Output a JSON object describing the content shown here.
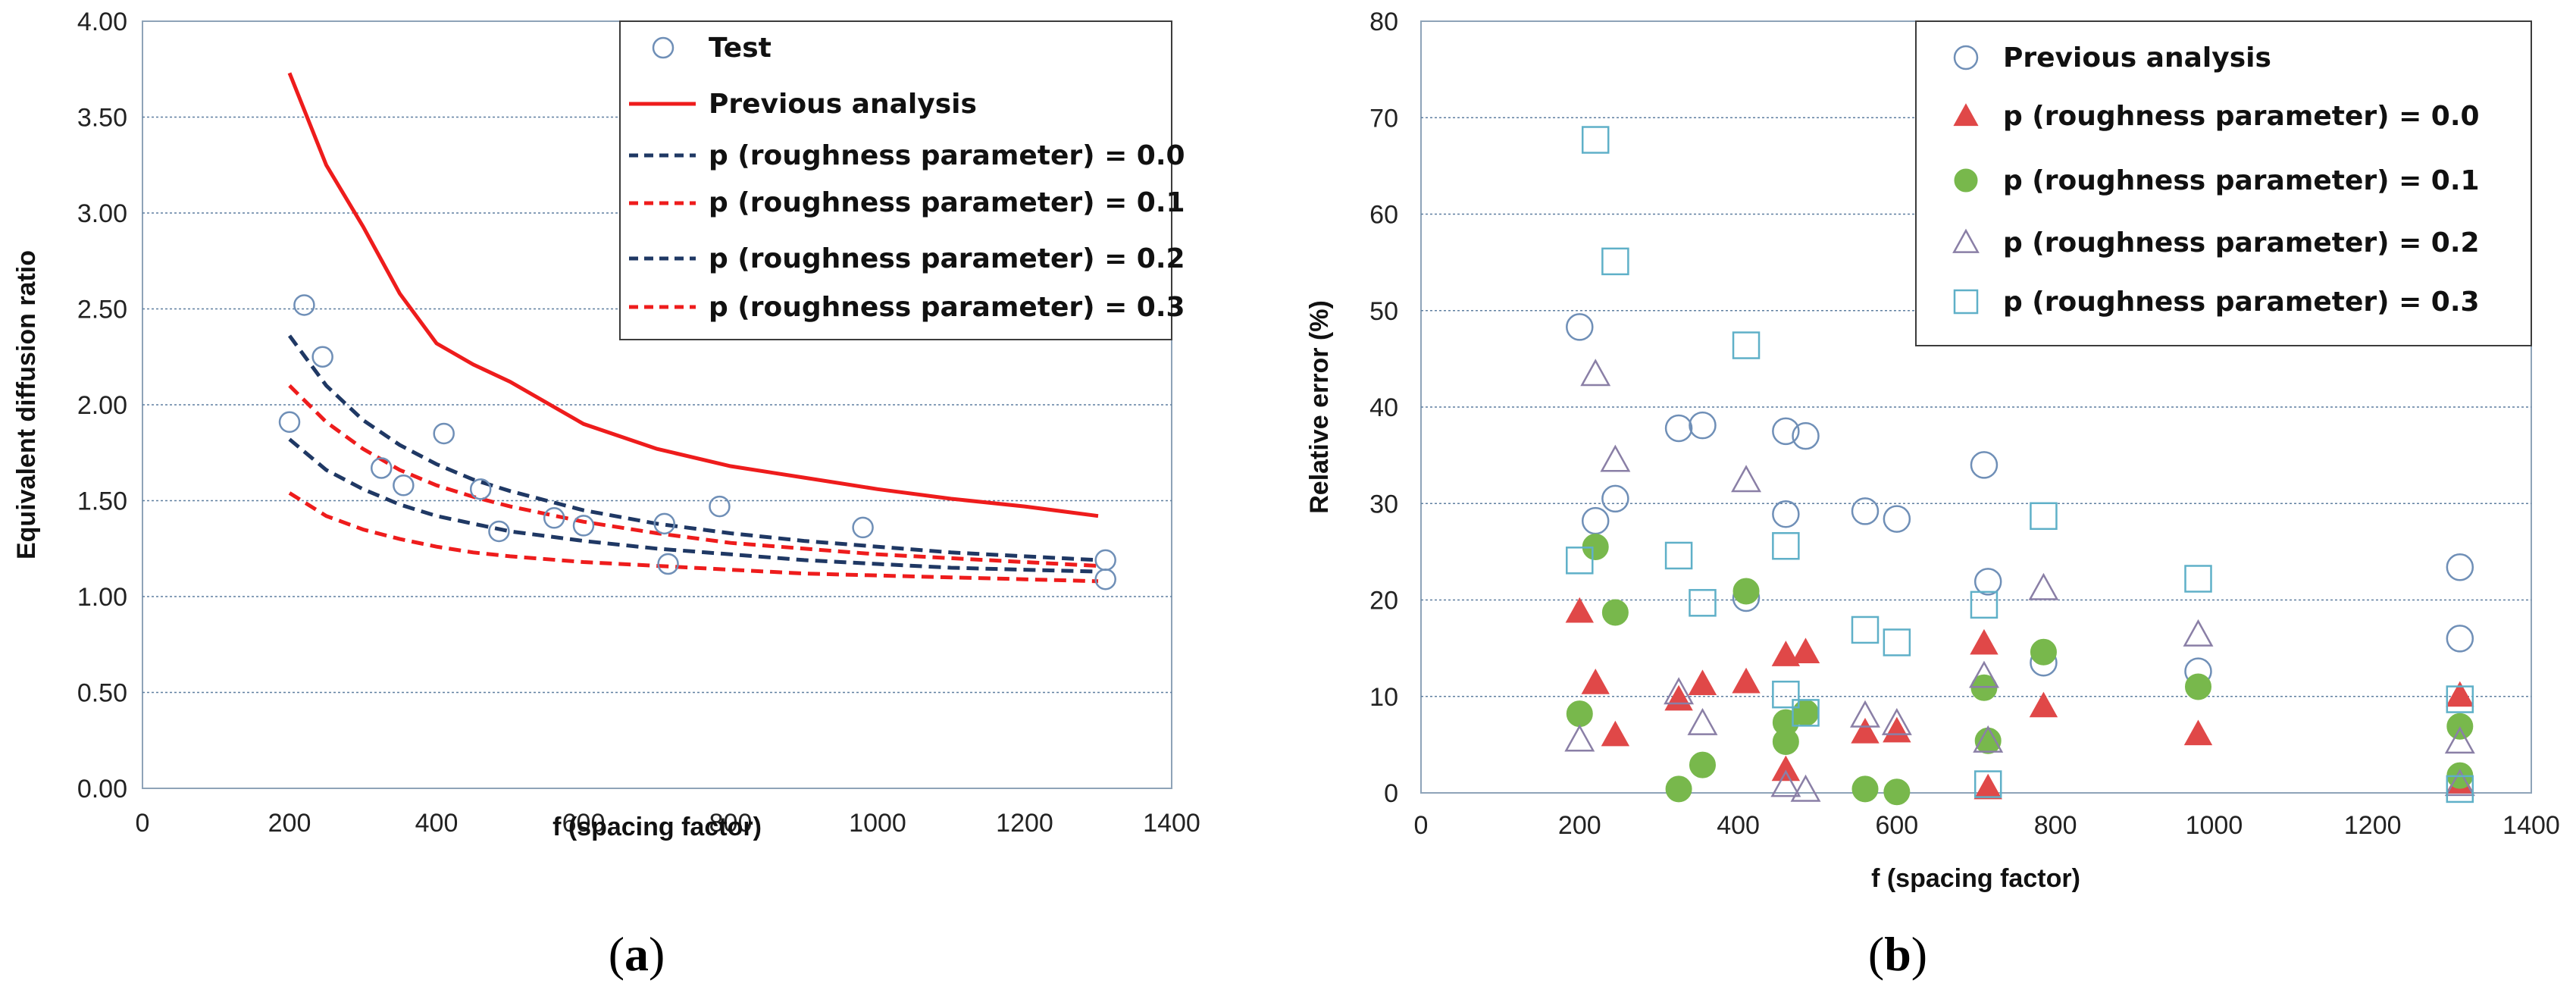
{
  "chart_data": [
    {
      "panel": "a",
      "panel_label": {
        "open": "(",
        "letter": "a",
        "close": ")"
      },
      "type": "line",
      "xlabel": "f (spacing factor)",
      "ylabel": "Equivalent diffusion ratio",
      "xlim": [
        0,
        1400
      ],
      "ylim": [
        0,
        4
      ],
      "xticks": [
        0,
        200,
        400,
        600,
        800,
        1000,
        1200,
        1400
      ],
      "xtick_labels": [
        "0",
        "200",
        "400",
        "600",
        "800",
        "1000",
        "1200",
        "1400"
      ],
      "yticks": [
        0,
        0.5,
        1,
        1.5,
        2,
        2.5,
        3,
        3.5,
        4
      ],
      "ytick_labels": [
        "0.00",
        "0.50",
        "1.00",
        "1.50",
        "2.00",
        "2.50",
        "3.00",
        "3.50",
        "4.00"
      ],
      "grid": "horizontal",
      "legend_position": "top-right",
      "series": [
        {
          "name": "Test",
          "kind": "scatter",
          "marker": "open-circle",
          "color": "#6f8fb7",
          "x": [
            200,
            220,
            245,
            325,
            355,
            410,
            460,
            485,
            560,
            600,
            710,
            715,
            785,
            980,
            1310,
            1310
          ],
          "y": [
            1.91,
            2.52,
            2.25,
            1.67,
            1.58,
            1.85,
            1.56,
            1.34,
            1.41,
            1.37,
            1.38,
            1.17,
            1.47,
            1.36,
            1.19,
            1.09
          ]
        },
        {
          "name": "Previous analysis",
          "kind": "line",
          "dash": "solid",
          "color": "#ee1c1c",
          "x": [
            200,
            250,
            300,
            350,
            400,
            450,
            500,
            600,
            700,
            800,
            900,
            1000,
            1100,
            1200,
            1300
          ],
          "y": [
            3.73,
            3.25,
            2.93,
            2.58,
            2.32,
            2.21,
            2.12,
            1.9,
            1.77,
            1.68,
            1.62,
            1.56,
            1.51,
            1.47,
            1.42
          ]
        },
        {
          "name": "p (roughness parameter) = 0.0",
          "kind": "line",
          "dash": "dashed",
          "color": "#1f3864",
          "x": [
            200,
            250,
            300,
            350,
            400,
            450,
            500,
            600,
            700,
            800,
            900,
            1000,
            1100,
            1200,
            1300
          ],
          "y": [
            2.36,
            2.1,
            1.92,
            1.79,
            1.69,
            1.61,
            1.55,
            1.45,
            1.38,
            1.33,
            1.29,
            1.26,
            1.23,
            1.21,
            1.19
          ]
        },
        {
          "name": "p (roughness parameter) = 0.1",
          "kind": "line",
          "dash": "dashed",
          "color": "#ee1c1c",
          "x": [
            200,
            250,
            300,
            350,
            400,
            450,
            500,
            600,
            700,
            800,
            900,
            1000,
            1100,
            1200,
            1300
          ],
          "y": [
            2.1,
            1.91,
            1.77,
            1.66,
            1.58,
            1.52,
            1.47,
            1.39,
            1.33,
            1.28,
            1.25,
            1.22,
            1.2,
            1.18,
            1.16
          ]
        },
        {
          "name": "p (roughness parameter) = 0.2",
          "kind": "line",
          "dash": "dashed",
          "color": "#1f3864",
          "x": [
            200,
            250,
            300,
            350,
            400,
            450,
            500,
            600,
            700,
            800,
            900,
            1000,
            1100,
            1200,
            1300
          ],
          "y": [
            1.82,
            1.66,
            1.56,
            1.48,
            1.42,
            1.38,
            1.34,
            1.29,
            1.25,
            1.22,
            1.19,
            1.17,
            1.15,
            1.14,
            1.13
          ]
        },
        {
          "name": "p (roughness parameter) = 0.3",
          "kind": "line",
          "dash": "dashed",
          "color": "#ee1c1c",
          "x": [
            200,
            250,
            300,
            350,
            400,
            450,
            500,
            600,
            700,
            800,
            900,
            1000,
            1100,
            1200,
            1300
          ],
          "y": [
            1.54,
            1.42,
            1.35,
            1.3,
            1.26,
            1.23,
            1.21,
            1.18,
            1.16,
            1.14,
            1.12,
            1.11,
            1.1,
            1.09,
            1.08
          ]
        }
      ]
    },
    {
      "panel": "b",
      "panel_label": {
        "open": "(",
        "letter": "b",
        "close": ")"
      },
      "type": "scatter",
      "xlabel": "f (spacing factor)",
      "ylabel": "Relative error (%)",
      "xlim": [
        0,
        1400
      ],
      "ylim": [
        0,
        80
      ],
      "xticks": [
        0,
        200,
        400,
        600,
        800,
        1000,
        1200,
        1400
      ],
      "xtick_labels": [
        "0",
        "200",
        "400",
        "600",
        "800",
        "1000",
        "1200",
        "1400"
      ],
      "yticks": [
        0,
        10,
        20,
        30,
        40,
        50,
        60,
        70,
        80
      ],
      "ytick_labels": [
        "0",
        "10",
        "20",
        "30",
        "40",
        "50",
        "60",
        "70",
        "80"
      ],
      "grid": "horizontal",
      "legend_position": "top-right",
      "series": [
        {
          "name": "Previous analysis",
          "marker": "open-circle",
          "color": "#6f8fb7",
          "x": [
            200,
            220,
            245,
            325,
            355,
            410,
            460,
            460,
            485,
            560,
            600,
            710,
            715,
            785,
            980,
            1310,
            1310
          ],
          "y": [
            48.3,
            28.2,
            30.5,
            37.8,
            38.1,
            20.2,
            37.5,
            28.9,
            37.0,
            29.2,
            28.4,
            34.0,
            21.9,
            13.5,
            12.6,
            23.4,
            16.0
          ]
        },
        {
          "name": "p (roughness parameter) = 0.0",
          "marker": "filled-triangle",
          "color": "#e04848",
          "x": [
            200,
            220,
            245,
            325,
            355,
            410,
            460,
            460,
            485,
            560,
            600,
            710,
            715,
            785,
            980,
            1310,
            1310
          ],
          "y": [
            18.8,
            11.4,
            6.0,
            9.7,
            11.3,
            11.5,
            14.3,
            2.4,
            14.6,
            6.3,
            6.4,
            15.5,
            0.5,
            9.0,
            6.1,
            10.1,
            1.1
          ]
        },
        {
          "name": "p (roughness parameter) = 0.1",
          "marker": "filled-circle",
          "color": "#78b84c",
          "x": [
            200,
            220,
            245,
            325,
            355,
            410,
            460,
            460,
            485,
            560,
            600,
            710,
            715,
            785,
            980,
            1310,
            1310
          ],
          "y": [
            8.2,
            25.5,
            18.7,
            0.4,
            2.9,
            20.9,
            7.3,
            5.3,
            8.3,
            0.4,
            0.1,
            10.9,
            5.4,
            14.6,
            11.0,
            6.9,
            1.8
          ]
        },
        {
          "name": "p (roughness parameter) = 0.2",
          "marker": "open-triangle",
          "color": "#8a7fa6",
          "x": [
            200,
            220,
            245,
            325,
            355,
            410,
            460,
            485,
            560,
            600,
            710,
            715,
            785,
            980,
            1310,
            1310
          ],
          "y": [
            5.5,
            43.4,
            34.5,
            10.4,
            7.2,
            32.4,
            0.8,
            0.3,
            8.0,
            7.2,
            12.1,
            5.4,
            21.2,
            16.4,
            5.3,
            0.9
          ]
        },
        {
          "name": "p (roughness parameter) = 0.3",
          "marker": "open-square",
          "color": "#5fb0c8",
          "x": [
            200,
            220,
            245,
            325,
            355,
            410,
            460,
            460,
            485,
            560,
            600,
            710,
            715,
            785,
            980,
            1310,
            1310
          ],
          "y": [
            24.1,
            67.7,
            55.1,
            24.6,
            19.7,
            46.4,
            25.6,
            10.2,
            8.3,
            16.9,
            15.6,
            19.5,
            0.9,
            28.7,
            22.2,
            9.7,
            0.4
          ]
        }
      ]
    }
  ]
}
